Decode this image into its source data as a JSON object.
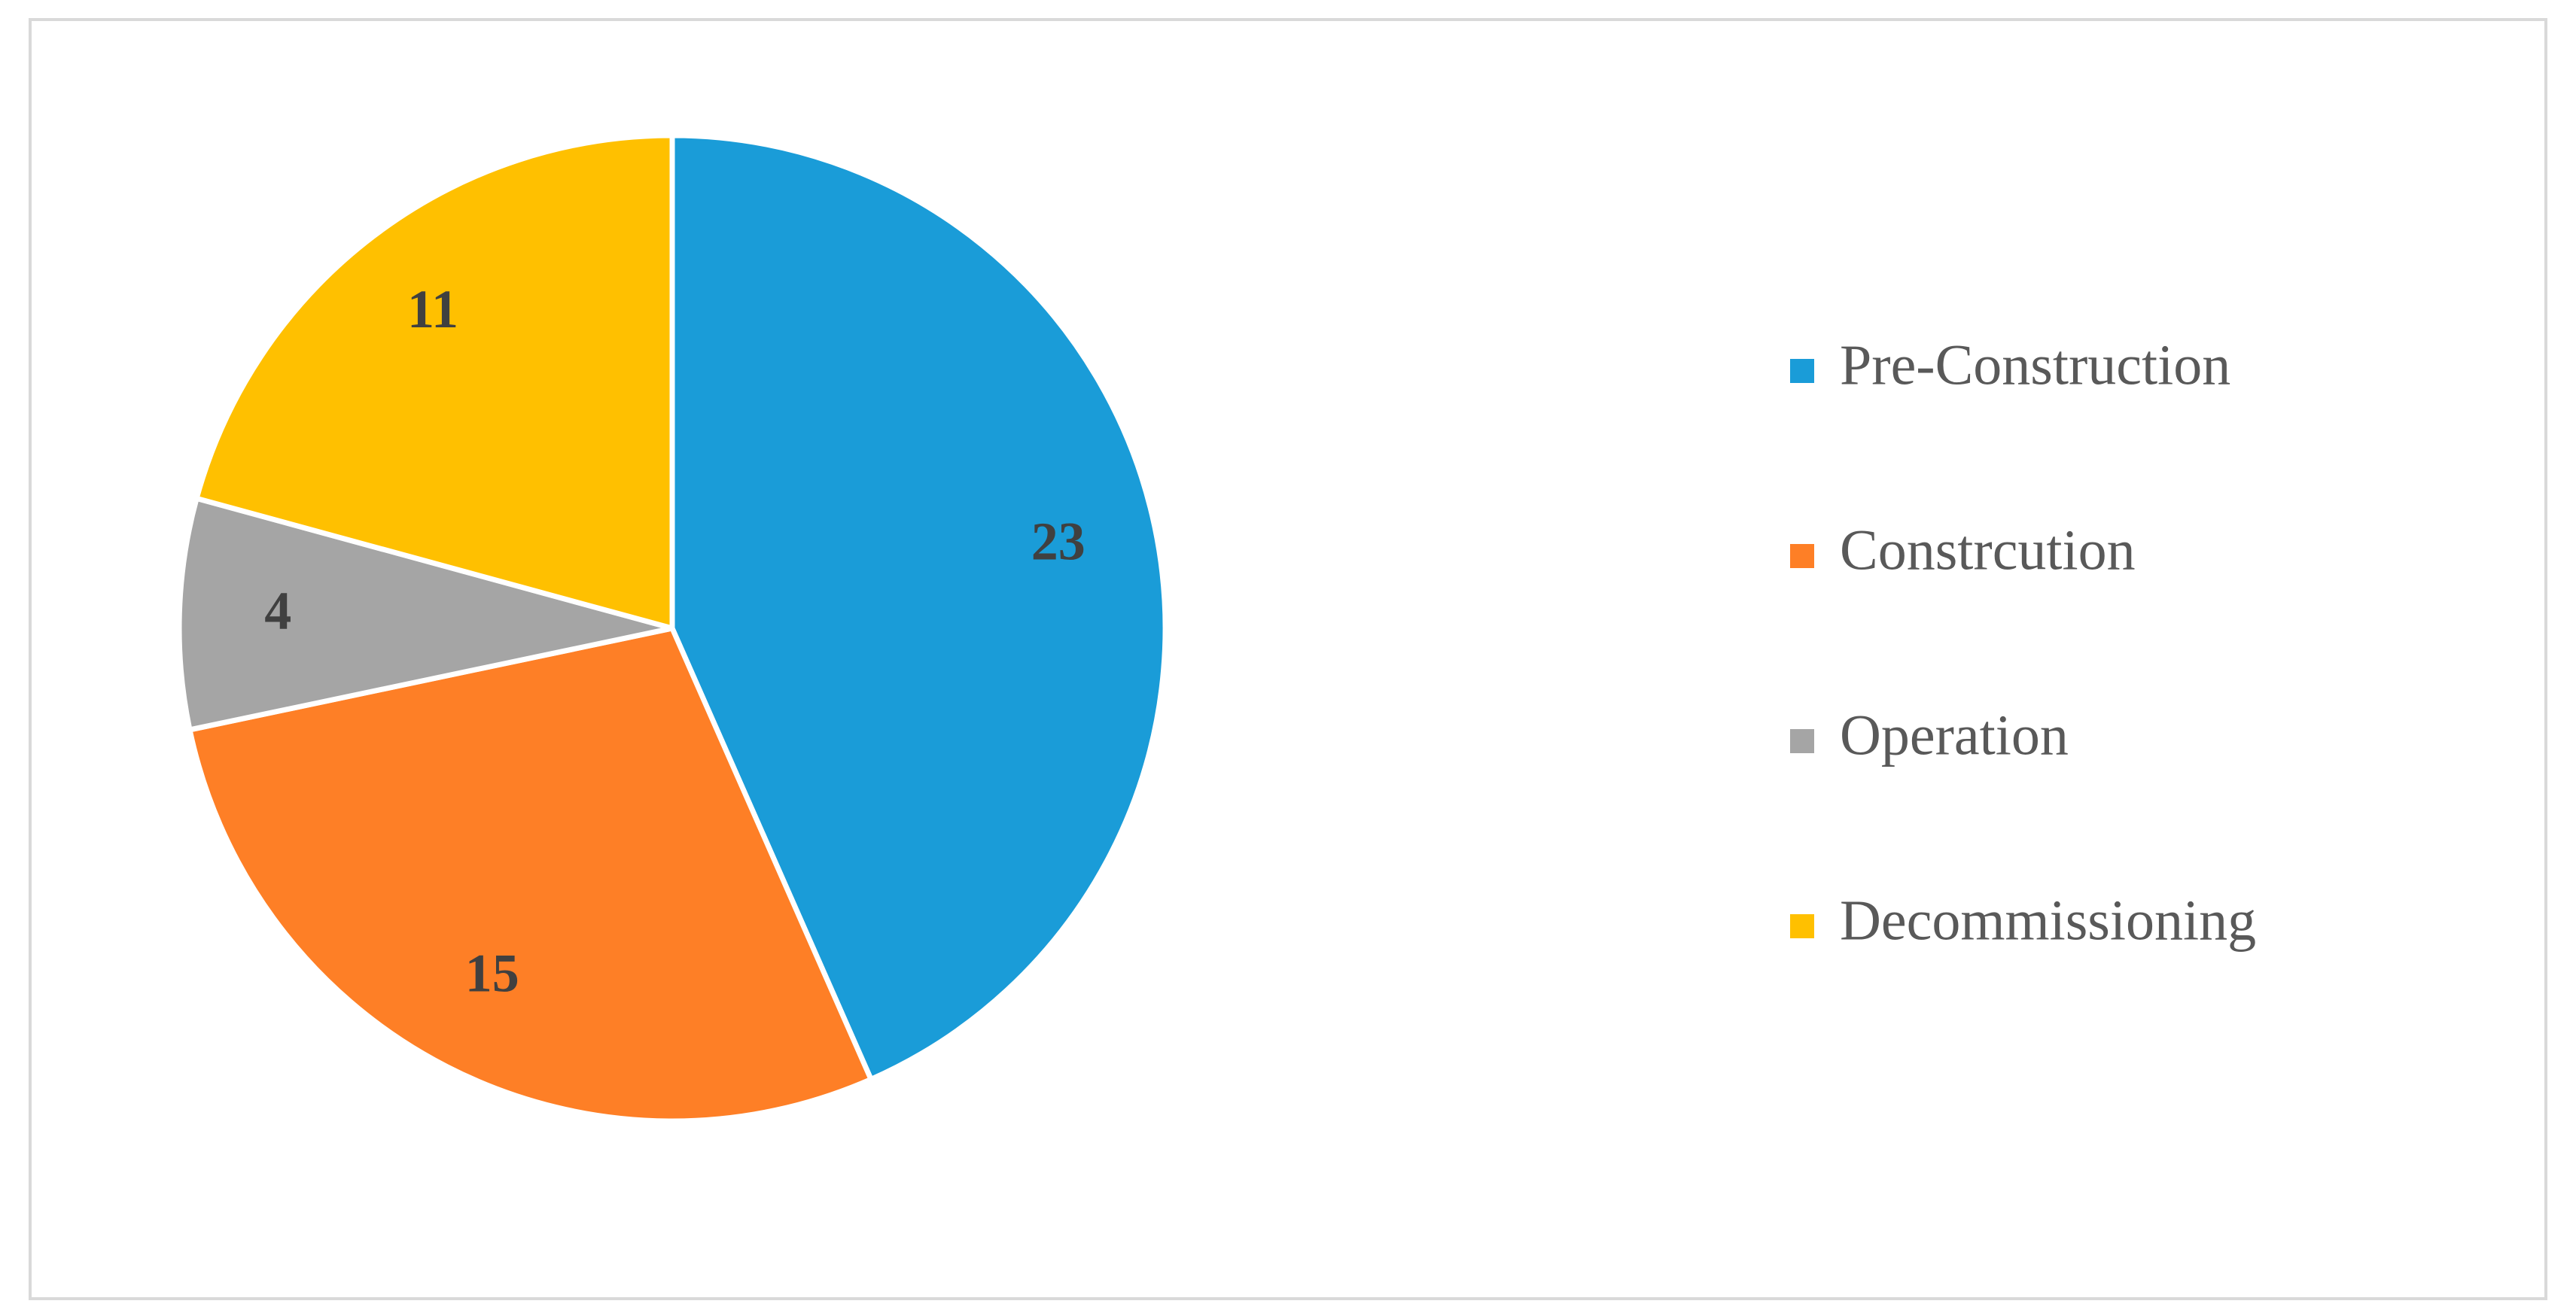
{
  "chart_data": {
    "type": "pie",
    "categories": [
      "Pre-Construction",
      "Constrcution",
      "Operation",
      "Decommissioning"
    ],
    "values": [
      23,
      15,
      4,
      11
    ],
    "colors": [
      "#1a9cd8",
      "#fe7f26",
      "#a5a5a5",
      "#ffc000"
    ],
    "legend": "right"
  }
}
